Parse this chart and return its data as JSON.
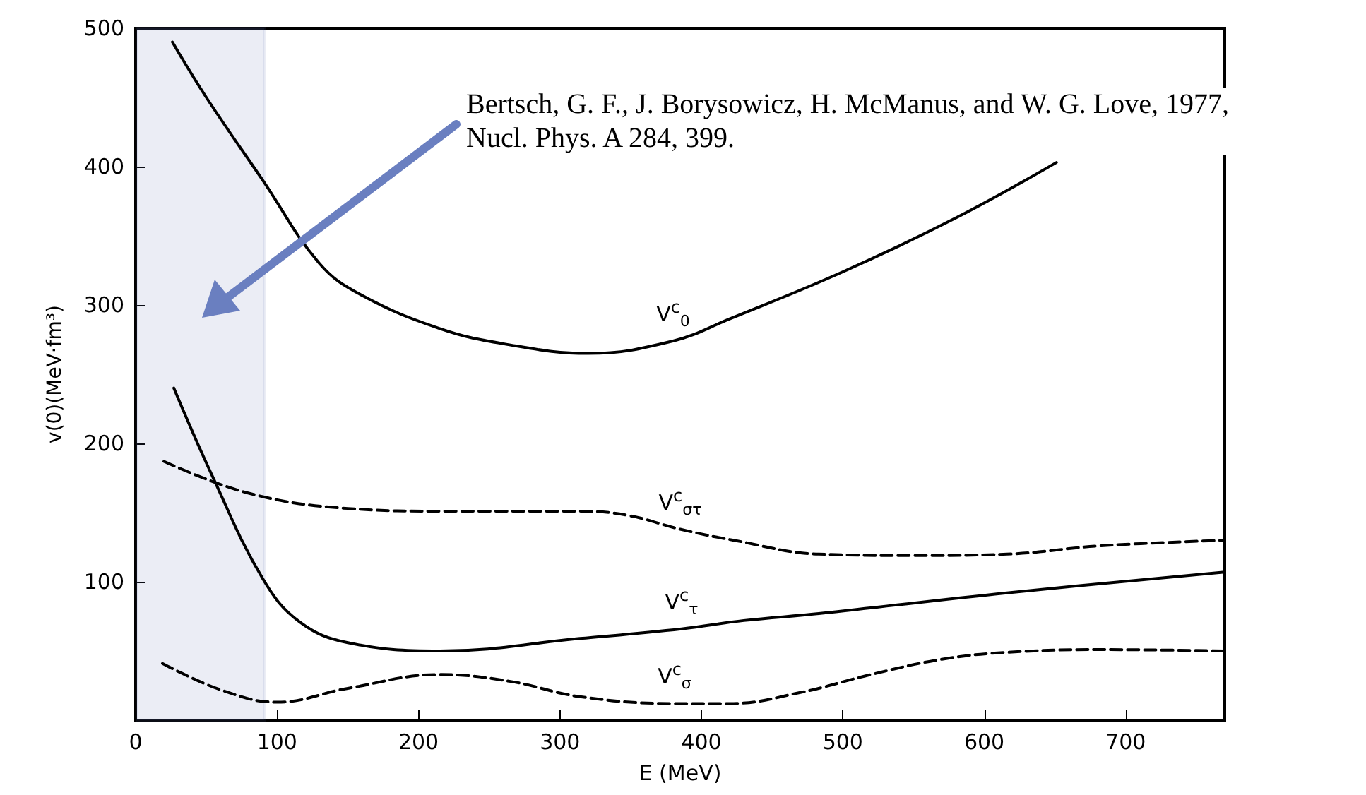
{
  "chart_data": {
    "type": "line",
    "xlabel": "E (MeV)",
    "ylabel": "v(0)(MeV·fm³)",
    "xlim": [
      0,
      770
    ],
    "xticks": [
      0,
      100,
      200,
      300,
      400,
      500,
      600,
      700
    ],
    "ylim": [
      0,
      500
    ],
    "yticks": [
      100,
      200,
      300,
      400,
      500
    ],
    "grid": false,
    "legend": false,
    "marker": "none",
    "bands": [
      {
        "axis": "x",
        "from": 1,
        "to": 91,
        "color": "#5a6fae"
      }
    ],
    "annotations": [
      "Bertsch, G. F., J. Borysowicz, H. McManus, and W. G. Love, 1977, Nucl. Phys. A 284, 399."
    ],
    "series": [
      {
        "name": "V$^{c}$$_{0}$",
        "color": "#000000",
        "line_style": "solid",
        "x": [
          26,
          50,
          90,
          130,
          160,
          215,
          260,
          320,
          380,
          420,
          500,
          580,
          651
        ],
        "values": [
          490,
          450,
          390,
          330,
          307,
          283,
          272,
          265,
          274,
          290,
          324,
          363,
          403
        ]
      },
      {
        "name": "V$^{c}$$_{στ}$",
        "color": "#000000",
        "line_style": "dashed",
        "x": [
          20,
          80,
          150,
          220,
          314,
          348,
          385,
          423,
          483,
          550,
          616,
          682,
          770
        ],
        "values": [
          187,
          164,
          153,
          151,
          151,
          148,
          138,
          130,
          120,
          119,
          120,
          126,
          130
        ]
      },
      {
        "name": "V$^{c}$$_{τ}$",
        "color": "#000000",
        "line_style": "solid",
        "x": [
          27,
          54,
          90,
          116,
          150,
          215,
          314,
          386,
          430,
          483,
          616,
          770
        ],
        "values": [
          240,
          177,
          102,
          71,
          56,
          50,
          59,
          66,
          72,
          77,
          92,
          107
        ]
      },
      {
        "name": "V$^{c}$$_{σ}$",
        "color": "#000000",
        "line_style": "dashed",
        "x": [
          19,
          60,
          100,
          150,
          215,
          265,
          314,
          381,
          420,
          470,
          520,
          570,
          616,
          682,
          770
        ],
        "values": [
          41,
          22,
          13,
          23,
          33,
          28,
          17,
          12,
          12,
          20,
          33,
          44,
          49,
          51,
          50
        ]
      }
    ]
  }
}
